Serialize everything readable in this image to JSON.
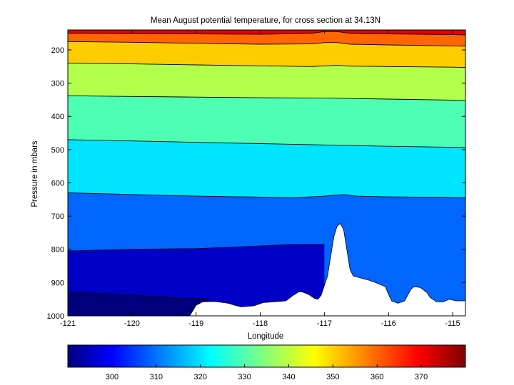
{
  "chart_data": {
    "type": "contour",
    "title": "Mean August potential temperature, for cross section at 34.13N",
    "xlabel": "Longitude",
    "ylabel": "Pressure in mbars",
    "xlim": [
      -121,
      -114.8
    ],
    "ylim": [
      1000,
      140
    ],
    "y_reversed": true,
    "x_ticks": [
      -121,
      -120,
      -119,
      -118,
      -117,
      -116,
      -115
    ],
    "y_ticks": [
      200,
      300,
      400,
      500,
      600,
      700,
      800,
      900,
      1000
    ],
    "colormap": "jet",
    "colorbar": {
      "range": [
        290,
        380
      ],
      "ticks": [
        300,
        310,
        320,
        330,
        340,
        350,
        360,
        370
      ]
    },
    "bands": [
      {
        "theta": 290,
        "color": "#00007f",
        "name": "band-290"
      },
      {
        "theta": 300,
        "color": "#0000c8",
        "name": "band-300"
      },
      {
        "theta": 310,
        "color": "#0066ff",
        "name": "band-310"
      },
      {
        "theta": 320,
        "color": "#00e5ff",
        "name": "band-320"
      },
      {
        "theta": 330,
        "color": "#4cffb2",
        "name": "band-330"
      },
      {
        "theta": 340,
        "color": "#b2ff4c",
        "name": "band-340"
      },
      {
        "theta": 350,
        "color": "#ffcc00",
        "name": "band-350"
      },
      {
        "theta": 360,
        "color": "#ff6600",
        "name": "band-360"
      },
      {
        "theta": 370,
        "color": "#e50000",
        "name": "band-370"
      }
    ],
    "contour_levels": [
      {
        "theta": 300,
        "points": [
          [
            -121,
            928
          ],
          [
            -120,
            937
          ],
          [
            -119.2,
            948
          ],
          [
            -118.8,
            948
          ]
        ]
      },
      {
        "theta": 310,
        "points": [
          [
            -121,
            805
          ],
          [
            -120,
            800
          ],
          [
            -119,
            798
          ],
          [
            -118,
            790
          ],
          [
            -117.5,
            785
          ],
          [
            -117,
            785
          ]
        ]
      },
      {
        "theta": 320,
        "points": [
          [
            -121,
            630
          ],
          [
            -120,
            635
          ],
          [
            -119,
            640
          ],
          [
            -118,
            643
          ],
          [
            -117.5,
            645
          ],
          [
            -117,
            640
          ],
          [
            -116.7,
            635
          ],
          [
            -116.5,
            640
          ],
          [
            -116,
            642
          ],
          [
            -115,
            644
          ],
          [
            -114.8,
            645
          ]
        ]
      },
      {
        "theta": 330,
        "points": [
          [
            -121,
            470
          ],
          [
            -120,
            474
          ],
          [
            -119,
            478
          ],
          [
            -118,
            482
          ],
          [
            -117,
            486
          ],
          [
            -116,
            490
          ],
          [
            -115,
            493
          ],
          [
            -114.8,
            494
          ]
        ]
      },
      {
        "theta": 340,
        "points": [
          [
            -121,
            338
          ],
          [
            -120,
            340
          ],
          [
            -119,
            342
          ],
          [
            -118,
            344
          ],
          [
            -117,
            345
          ],
          [
            -116,
            348
          ],
          [
            -115,
            351
          ],
          [
            -114.8,
            352
          ]
        ]
      },
      {
        "theta": 350,
        "points": [
          [
            -121,
            240
          ],
          [
            -120,
            242
          ],
          [
            -119,
            245
          ],
          [
            -118,
            248
          ],
          [
            -117.2,
            250
          ],
          [
            -117,
            248
          ],
          [
            -116.8,
            246
          ],
          [
            -116.6,
            249
          ],
          [
            -116,
            250
          ],
          [
            -115,
            252
          ],
          [
            -114.8,
            253
          ]
        ]
      },
      {
        "theta": 360,
        "points": [
          [
            -121,
            175
          ],
          [
            -120,
            177
          ],
          [
            -119,
            180
          ],
          [
            -118,
            183
          ],
          [
            -117.2,
            182
          ],
          [
            -117,
            178
          ],
          [
            -116.8,
            178
          ],
          [
            -116.6,
            183
          ],
          [
            -116,
            185
          ],
          [
            -115,
            188
          ],
          [
            -114.8,
            189
          ]
        ]
      },
      {
        "theta": 370,
        "points": [
          [
            -121,
            150
          ],
          [
            -120,
            151
          ],
          [
            -119,
            152
          ],
          [
            -118,
            153
          ],
          [
            -117.2,
            150
          ],
          [
            -117,
            145
          ],
          [
            -116.8,
            145
          ],
          [
            -116.6,
            150
          ],
          [
            -116,
            152
          ],
          [
            -115,
            154
          ],
          [
            -114.8,
            155
          ]
        ]
      }
    ],
    "terrain_surface": [
      [
        -121,
        1000
      ],
      [
        -119.1,
        1000
      ],
      [
        -119.0,
        968
      ],
      [
        -118.9,
        958
      ],
      [
        -118.7,
        957
      ],
      [
        -118.5,
        962
      ],
      [
        -118.4,
        968
      ],
      [
        -118.3,
        973
      ],
      [
        -118.1,
        970
      ],
      [
        -117.95,
        960
      ],
      [
        -117.8,
        958
      ],
      [
        -117.6,
        955
      ],
      [
        -117.5,
        940
      ],
      [
        -117.4,
        928
      ],
      [
        -117.35,
        928
      ],
      [
        -117.25,
        935
      ],
      [
        -117.15,
        948
      ],
      [
        -117.1,
        950
      ],
      [
        -117.05,
        938
      ],
      [
        -116.95,
        880
      ],
      [
        -116.9,
        820
      ],
      [
        -116.85,
        760
      ],
      [
        -116.8,
        730
      ],
      [
        -116.75,
        722
      ],
      [
        -116.7,
        740
      ],
      [
        -116.65,
        800
      ],
      [
        -116.6,
        860
      ],
      [
        -116.55,
        880
      ],
      [
        -116.4,
        888
      ],
      [
        -116.3,
        893
      ],
      [
        -116.2,
        900
      ],
      [
        -116.05,
        912
      ],
      [
        -116.0,
        935
      ],
      [
        -115.95,
        955
      ],
      [
        -115.85,
        962
      ],
      [
        -115.75,
        955
      ],
      [
        -115.7,
        938
      ],
      [
        -115.65,
        920
      ],
      [
        -115.6,
        912
      ],
      [
        -115.5,
        915
      ],
      [
        -115.4,
        930
      ],
      [
        -115.35,
        945
      ],
      [
        -115.25,
        958
      ],
      [
        -115.15,
        958
      ],
      [
        -115.05,
        950
      ],
      [
        -114.95,
        955
      ],
      [
        -114.8,
        955
      ],
      [
        -114.8,
        1000
      ]
    ]
  }
}
